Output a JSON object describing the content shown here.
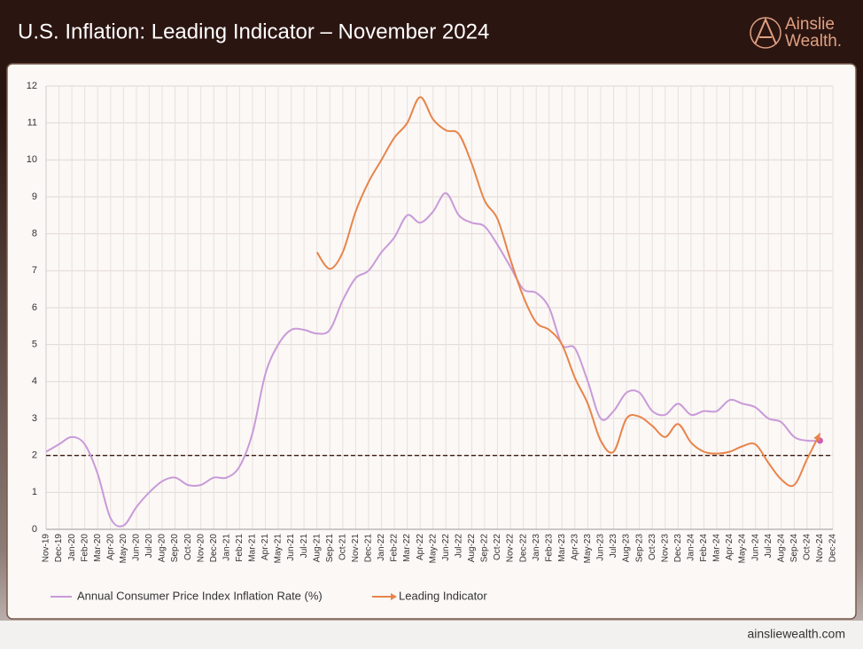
{
  "header": {
    "title": "U.S. Inflation: Leading Indicator – November 2024",
    "logo_line1": "Ainslie",
    "logo_line2": "Wealth."
  },
  "footer": {
    "url": "ainsliewealth.com"
  },
  "chart_data": {
    "type": "line",
    "categories": [
      "Nov-19",
      "Dec-19",
      "Jan-20",
      "Feb-20",
      "Mar-20",
      "Apr-20",
      "May-20",
      "Jun-20",
      "Jul-20",
      "Aug-20",
      "Sep-20",
      "Oct-20",
      "Nov-20",
      "Dec-20",
      "Jan-21",
      "Feb-21",
      "Mar-21",
      "Apr-21",
      "May-21",
      "Jun-21",
      "Jul-21",
      "Aug-21",
      "Sep-21",
      "Oct-21",
      "Nov-21",
      "Dec-21",
      "Jan-22",
      "Feb-22",
      "Mar-22",
      "Apr-22",
      "May-22",
      "Jun-22",
      "Jul-22",
      "Aug-22",
      "Sep-22",
      "Oct-22",
      "Nov-22",
      "Dec-22",
      "Jan-23",
      "Feb-23",
      "Mar-23",
      "Apr-23",
      "May-23",
      "Jun-23",
      "Jul-23",
      "Aug-23",
      "Sep-23",
      "Oct-23",
      "Nov-23",
      "Dec-23",
      "Jan-24",
      "Feb-24",
      "Mar-24",
      "Apr-24",
      "May-24",
      "Jun-24",
      "Jul-24",
      "Aug-24",
      "Sep-24",
      "Oct-24",
      "Nov-24",
      "Dec-24"
    ],
    "series": [
      {
        "name": "Annual Consumer Price Index Inflation Rate (%)",
        "color": "#c99ad8",
        "end_marker_color": "#cf5ab0",
        "values": [
          2.1,
          2.3,
          2.5,
          2.3,
          1.5,
          0.3,
          0.1,
          0.6,
          1.0,
          1.3,
          1.4,
          1.2,
          1.2,
          1.4,
          1.4,
          1.7,
          2.6,
          4.2,
          5.0,
          5.4,
          5.4,
          5.3,
          5.4,
          6.2,
          6.8,
          7.0,
          7.5,
          7.9,
          8.5,
          8.3,
          8.6,
          9.1,
          8.5,
          8.3,
          8.2,
          7.7,
          7.1,
          6.5,
          6.4,
          6.0,
          5.0,
          4.9,
          4.0,
          3.0,
          3.2,
          3.7,
          3.7,
          3.2,
          3.1,
          3.4,
          3.1,
          3.2,
          3.2,
          3.5,
          3.4,
          3.3,
          3.0,
          2.9,
          2.5,
          2.4,
          2.4,
          null
        ]
      },
      {
        "name": "Leading Indicator",
        "color": "#e8844a",
        "values": [
          null,
          null,
          null,
          null,
          null,
          null,
          null,
          null,
          null,
          null,
          null,
          null,
          null,
          null,
          null,
          null,
          null,
          null,
          null,
          null,
          null,
          7.5,
          7.05,
          7.5,
          8.6,
          9.4,
          10.0,
          10.6,
          11.0,
          11.7,
          11.1,
          10.8,
          10.7,
          9.9,
          8.9,
          8.4,
          7.3,
          6.3,
          5.6,
          5.4,
          5.0,
          4.1,
          3.4,
          2.4,
          2.1,
          3.0,
          3.05,
          2.8,
          2.5,
          2.85,
          2.35,
          2.1,
          2.05,
          2.1,
          2.25,
          2.3,
          1.8,
          1.35,
          1.2,
          1.9,
          2.6,
          null
        ]
      }
    ],
    "ylim": [
      0,
      12
    ],
    "yticks": [
      0,
      1,
      2,
      3,
      4,
      5,
      6,
      7,
      8,
      9,
      10,
      11,
      12
    ],
    "reference_line": 2,
    "grid": true,
    "legend": "bottom"
  }
}
